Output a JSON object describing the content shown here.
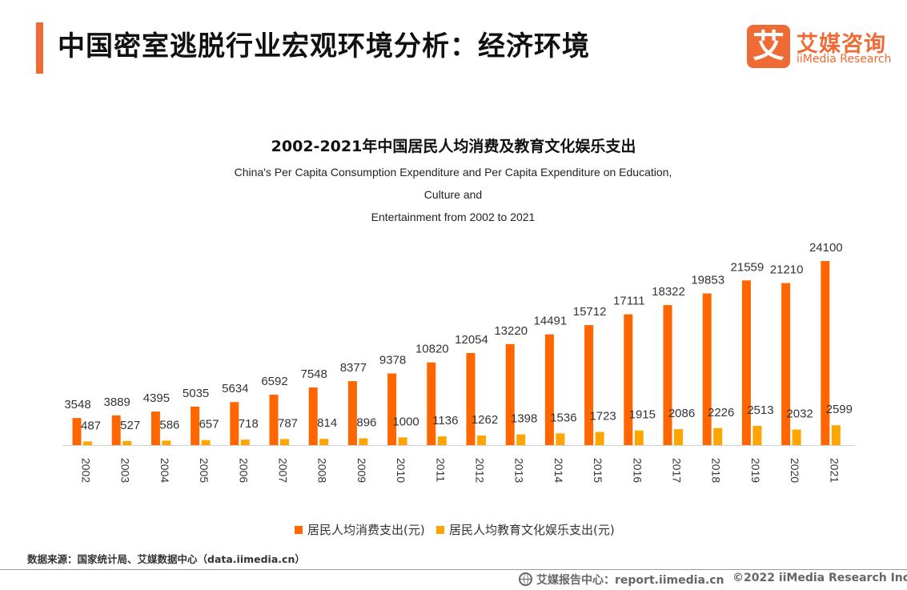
{
  "header": {
    "title": "中国密室逃脱行业宏观环境分析：经济环境",
    "logo_mark": "艾",
    "logo_cn": "艾媒咨询",
    "logo_en": "iiMedia Research"
  },
  "chart_data": {
    "type": "bar",
    "title": "2002-2021年中国居民人均消费及教育文化娱乐支出",
    "subtitle_line1": "China's Per Capita Consumption Expenditure and Per Capita Expenditure on Education, Culture and",
    "subtitle_line2": "Entertainment from 2002 to 2021",
    "categories": [
      "2002",
      "2003",
      "2004",
      "2005",
      "2006",
      "2007",
      "2008",
      "2009",
      "2010",
      "2011",
      "2012",
      "2013",
      "2014",
      "2015",
      "2016",
      "2017",
      "2018",
      "2019",
      "2020",
      "2021"
    ],
    "series": [
      {
        "name": "居民人均消费支出(元)",
        "color": "#ff6600",
        "values": [
          3548,
          3889,
          4395,
          5035,
          5634,
          6592,
          7548,
          8377,
          9378,
          10820,
          12054,
          13220,
          14491,
          15712,
          17111,
          18322,
          19853,
          21559,
          21210,
          24100
        ]
      },
      {
        "name": "居民人均教育文化娱乐支出(元)",
        "color": "#ffa500",
        "values": [
          487,
          527,
          586,
          657,
          718,
          787,
          814,
          896,
          1000,
          1136,
          1262,
          1398,
          1536,
          1723,
          1915,
          2086,
          2226,
          2513,
          2032,
          2599
        ]
      }
    ],
    "ylim": [
      0,
      24100
    ],
    "grid": false,
    "legend_position": "bottom-center",
    "x_tick_rotation": "vertical"
  },
  "source_text": "数据来源：国家统计局、艾媒数据中心（data.iimedia.cn）",
  "footer": {
    "report_site": "艾媒报告中心：report.iimedia.cn",
    "copyright": "©2022  iiMedia Research  Inc"
  }
}
